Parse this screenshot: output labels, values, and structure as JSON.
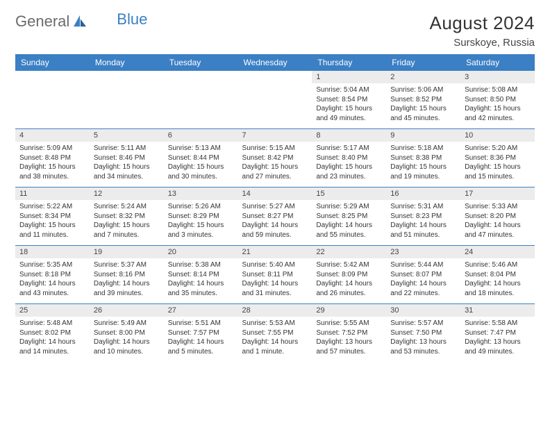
{
  "brand": {
    "part1": "General",
    "part2": "Blue"
  },
  "title": "August 2024",
  "subtitle": "Surskoye, Russia",
  "colors": {
    "header_bg": "#3b7fc4",
    "header_text": "#ffffff",
    "daynum_bg": "#ececec",
    "row_divider": "#3b7fc4",
    "body_text": "#333333",
    "logo_gray": "#6b6b6b",
    "logo_blue": "#3b7fc4",
    "page_bg": "#ffffff"
  },
  "typography": {
    "title_fontsize": 26,
    "subtitle_fontsize": 15,
    "weekday_fontsize": 12,
    "daynum_fontsize": 11,
    "cell_fontsize": 10
  },
  "weekdays": [
    "Sunday",
    "Monday",
    "Tuesday",
    "Wednesday",
    "Thursday",
    "Friday",
    "Saturday"
  ],
  "weeks": [
    [
      null,
      null,
      null,
      null,
      {
        "n": "1",
        "sunrise": "5:04 AM",
        "sunset": "8:54 PM",
        "daylight": "15 hours and 49 minutes."
      },
      {
        "n": "2",
        "sunrise": "5:06 AM",
        "sunset": "8:52 PM",
        "daylight": "15 hours and 45 minutes."
      },
      {
        "n": "3",
        "sunrise": "5:08 AM",
        "sunset": "8:50 PM",
        "daylight": "15 hours and 42 minutes."
      }
    ],
    [
      {
        "n": "4",
        "sunrise": "5:09 AM",
        "sunset": "8:48 PM",
        "daylight": "15 hours and 38 minutes."
      },
      {
        "n": "5",
        "sunrise": "5:11 AM",
        "sunset": "8:46 PM",
        "daylight": "15 hours and 34 minutes."
      },
      {
        "n": "6",
        "sunrise": "5:13 AM",
        "sunset": "8:44 PM",
        "daylight": "15 hours and 30 minutes."
      },
      {
        "n": "7",
        "sunrise": "5:15 AM",
        "sunset": "8:42 PM",
        "daylight": "15 hours and 27 minutes."
      },
      {
        "n": "8",
        "sunrise": "5:17 AM",
        "sunset": "8:40 PM",
        "daylight": "15 hours and 23 minutes."
      },
      {
        "n": "9",
        "sunrise": "5:18 AM",
        "sunset": "8:38 PM",
        "daylight": "15 hours and 19 minutes."
      },
      {
        "n": "10",
        "sunrise": "5:20 AM",
        "sunset": "8:36 PM",
        "daylight": "15 hours and 15 minutes."
      }
    ],
    [
      {
        "n": "11",
        "sunrise": "5:22 AM",
        "sunset": "8:34 PM",
        "daylight": "15 hours and 11 minutes."
      },
      {
        "n": "12",
        "sunrise": "5:24 AM",
        "sunset": "8:32 PM",
        "daylight": "15 hours and 7 minutes."
      },
      {
        "n": "13",
        "sunrise": "5:26 AM",
        "sunset": "8:29 PM",
        "daylight": "15 hours and 3 minutes."
      },
      {
        "n": "14",
        "sunrise": "5:27 AM",
        "sunset": "8:27 PM",
        "daylight": "14 hours and 59 minutes."
      },
      {
        "n": "15",
        "sunrise": "5:29 AM",
        "sunset": "8:25 PM",
        "daylight": "14 hours and 55 minutes."
      },
      {
        "n": "16",
        "sunrise": "5:31 AM",
        "sunset": "8:23 PM",
        "daylight": "14 hours and 51 minutes."
      },
      {
        "n": "17",
        "sunrise": "5:33 AM",
        "sunset": "8:20 PM",
        "daylight": "14 hours and 47 minutes."
      }
    ],
    [
      {
        "n": "18",
        "sunrise": "5:35 AM",
        "sunset": "8:18 PM",
        "daylight": "14 hours and 43 minutes."
      },
      {
        "n": "19",
        "sunrise": "5:37 AM",
        "sunset": "8:16 PM",
        "daylight": "14 hours and 39 minutes."
      },
      {
        "n": "20",
        "sunrise": "5:38 AM",
        "sunset": "8:14 PM",
        "daylight": "14 hours and 35 minutes."
      },
      {
        "n": "21",
        "sunrise": "5:40 AM",
        "sunset": "8:11 PM",
        "daylight": "14 hours and 31 minutes."
      },
      {
        "n": "22",
        "sunrise": "5:42 AM",
        "sunset": "8:09 PM",
        "daylight": "14 hours and 26 minutes."
      },
      {
        "n": "23",
        "sunrise": "5:44 AM",
        "sunset": "8:07 PM",
        "daylight": "14 hours and 22 minutes."
      },
      {
        "n": "24",
        "sunrise": "5:46 AM",
        "sunset": "8:04 PM",
        "daylight": "14 hours and 18 minutes."
      }
    ],
    [
      {
        "n": "25",
        "sunrise": "5:48 AM",
        "sunset": "8:02 PM",
        "daylight": "14 hours and 14 minutes."
      },
      {
        "n": "26",
        "sunrise": "5:49 AM",
        "sunset": "8:00 PM",
        "daylight": "14 hours and 10 minutes."
      },
      {
        "n": "27",
        "sunrise": "5:51 AM",
        "sunset": "7:57 PM",
        "daylight": "14 hours and 5 minutes."
      },
      {
        "n": "28",
        "sunrise": "5:53 AM",
        "sunset": "7:55 PM",
        "daylight": "14 hours and 1 minute."
      },
      {
        "n": "29",
        "sunrise": "5:55 AM",
        "sunset": "7:52 PM",
        "daylight": "13 hours and 57 minutes."
      },
      {
        "n": "30",
        "sunrise": "5:57 AM",
        "sunset": "7:50 PM",
        "daylight": "13 hours and 53 minutes."
      },
      {
        "n": "31",
        "sunrise": "5:58 AM",
        "sunset": "7:47 PM",
        "daylight": "13 hours and 49 minutes."
      }
    ]
  ],
  "labels": {
    "sunrise": "Sunrise: ",
    "sunset": "Sunset: ",
    "daylight": "Daylight: "
  }
}
